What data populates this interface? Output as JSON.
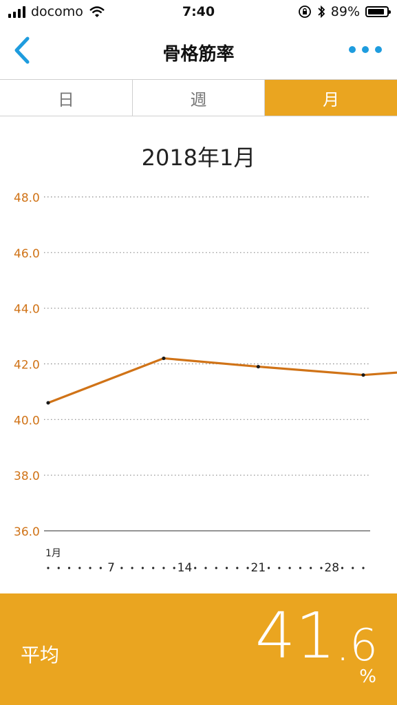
{
  "status_bar": {
    "carrier": "docomo",
    "time": "7:40",
    "battery": "89%",
    "battery_level": 0.89,
    "signal_bars": 4
  },
  "nav": {
    "title": "骨格筋率",
    "back_icon": "chevron-left-icon",
    "more_icon": "more-dots-icon",
    "accent_color": "#1e9cde"
  },
  "segments": {
    "items": [
      {
        "label": "日",
        "active": false
      },
      {
        "label": "週",
        "active": false
      },
      {
        "label": "月",
        "active": true
      }
    ],
    "active_color": "#eaa520"
  },
  "period_label": "2018年1月",
  "chart_data": {
    "type": "line",
    "y_ticks": [
      "48.0",
      "46.0",
      "44.0",
      "42.0",
      "40.0",
      "38.0",
      "36.0"
    ],
    "ylim": [
      36,
      48
    ],
    "month_label": "1月",
    "x_tick_labels": [
      "7",
      "14",
      "21",
      "28"
    ],
    "xlim": [
      1,
      31
    ],
    "series": [
      {
        "points": [
          {
            "x": 1,
            "y": 40.6
          },
          {
            "x": 12,
            "y": 42.2
          },
          {
            "x": 21,
            "y": 41.9
          },
          {
            "x": 31,
            "y": 41.6
          },
          {
            "x": 42,
            "y": 41.9
          }
        ]
      }
    ],
    "line_color": "#d07317",
    "axis_label_color": "#d07317",
    "grid": true
  },
  "average": {
    "label": "平均",
    "int_part": "41",
    "dot": ".",
    "dec_part": "6",
    "unit": "%"
  }
}
